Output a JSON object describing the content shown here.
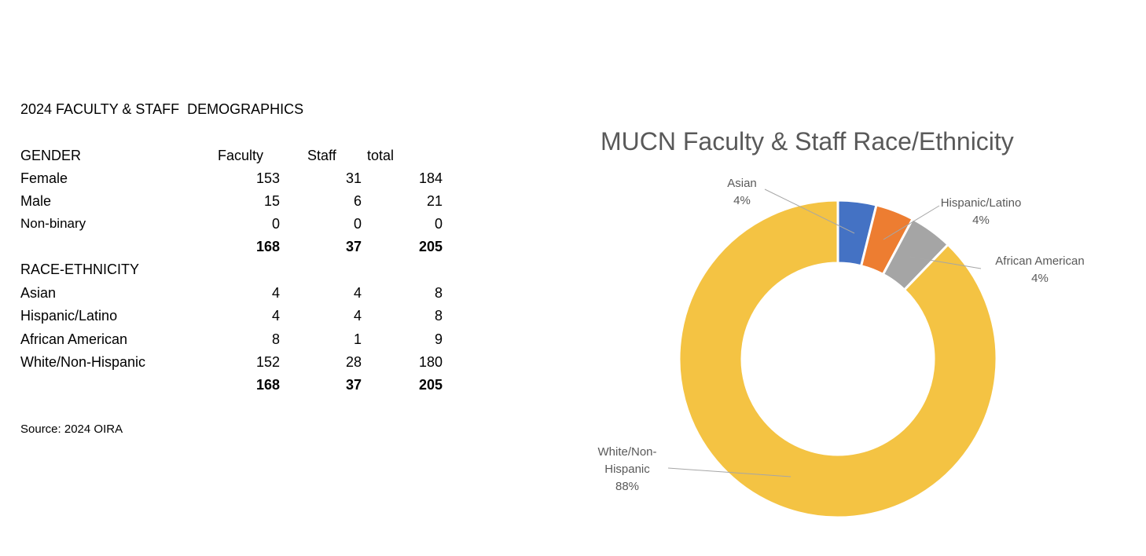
{
  "table": {
    "title": "2024 FACULTY & STAFF  DEMOGRAPHICS",
    "gender": {
      "header": {
        "label": "GENDER",
        "faculty": "Faculty",
        "staff": "Staff",
        "total": "total"
      },
      "rows": [
        {
          "label": "Female",
          "faculty": "153",
          "staff": "31",
          "total": "184"
        },
        {
          "label": "Male",
          "faculty": "15",
          "staff": "6",
          "total": "21"
        },
        {
          "label": "Non-binary",
          "faculty": "0",
          "staff": "0",
          "total": "0"
        }
      ],
      "totals": {
        "faculty": "168",
        "staff": "37",
        "total": "205"
      }
    },
    "race": {
      "header": {
        "label": "RACE-ETHNICITY"
      },
      "rows": [
        {
          "label": "Asian",
          "faculty": "4",
          "staff": "4",
          "total": "8"
        },
        {
          "label": "Hispanic/Latino",
          "faculty": "4",
          "staff": "4",
          "total": "8"
        },
        {
          "label": "African American",
          "faculty": "8",
          "staff": "1",
          "total": "9"
        },
        {
          "label": "White/Non-Hispanic",
          "faculty": "152",
          "staff": "28",
          "total": "180"
        }
      ],
      "totals": {
        "faculty": "168",
        "staff": "37",
        "total": "205"
      }
    },
    "source": "Source: 2024 OIRA"
  },
  "chart_data": {
    "type": "pie",
    "donut": true,
    "title": "MUCN Faculty & Staff Race/Ethnicity",
    "slices": [
      {
        "label": "Asian",
        "value": 8,
        "percent_label": "4%",
        "color": "#4472C4"
      },
      {
        "label": "Hispanic/Latino",
        "value": 8,
        "percent_label": "4%",
        "color": "#ED7D31"
      },
      {
        "label": "African American",
        "value": 9,
        "percent_label": "4%",
        "color": "#A5A5A5"
      },
      {
        "label": "White/Non-Hispanic",
        "value": 180,
        "percent_label": "88%",
        "color": "#F4C343"
      }
    ],
    "label_text_color": "#595959",
    "leader_line_color": "#A6A6A6",
    "legend": "none"
  }
}
